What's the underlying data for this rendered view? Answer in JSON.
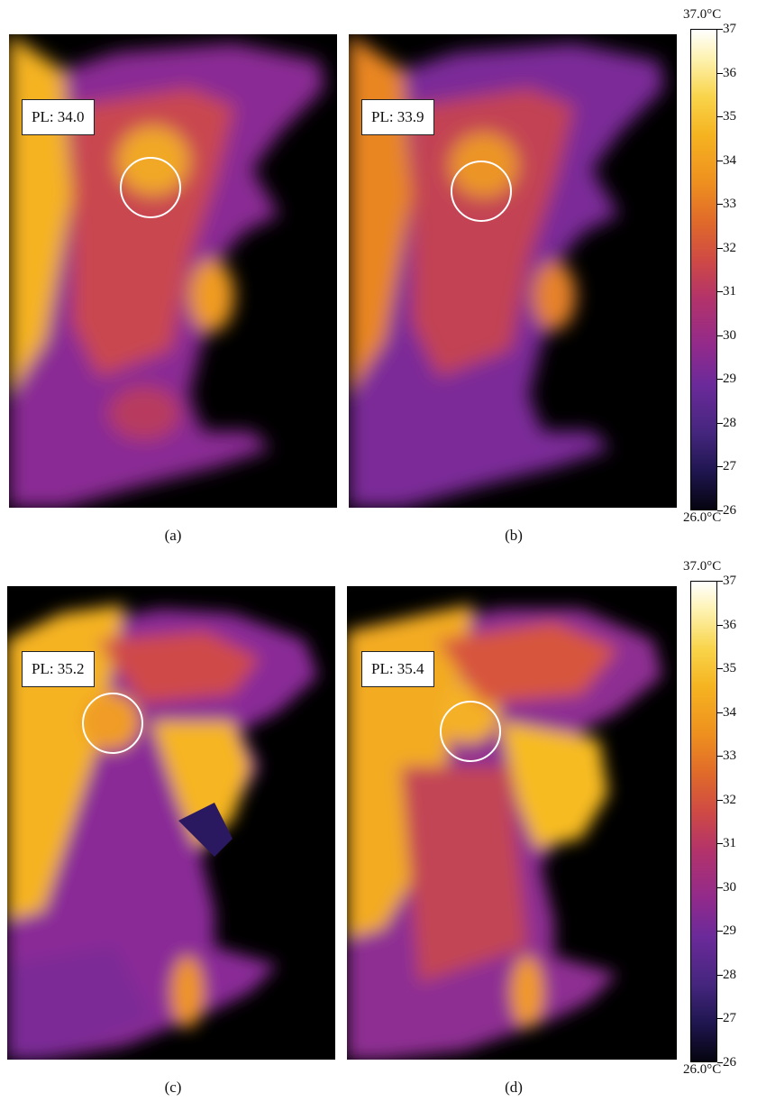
{
  "panels": [
    {
      "label": "PL: 34.0",
      "caption": "(a)"
    },
    {
      "label": "PL: 33.9",
      "caption": "(b)"
    },
    {
      "label": "PL: 35.2",
      "caption": "(c)"
    },
    {
      "label": "PL: 35.4",
      "caption": "(d)"
    }
  ],
  "colorbars": [
    {
      "max_label": "37.0°C",
      "min_label": "26.0°C",
      "ticks": [
        "37",
        "36",
        "35",
        "34",
        "33",
        "32",
        "31",
        "30",
        "29",
        "28",
        "27",
        "26"
      ]
    },
    {
      "max_label": "37.0°C",
      "min_label": "26.0°C",
      "ticks": [
        "37",
        "36",
        "35",
        "34",
        "33",
        "32",
        "31",
        "30",
        "29",
        "28",
        "27",
        "26"
      ]
    }
  ],
  "colors": {
    "hot": "#f6b21e",
    "warm": "#e0672a",
    "mid": "#a1307f",
    "cool": "#3a2380",
    "background": "#000000",
    "ring": "#ffffff"
  }
}
